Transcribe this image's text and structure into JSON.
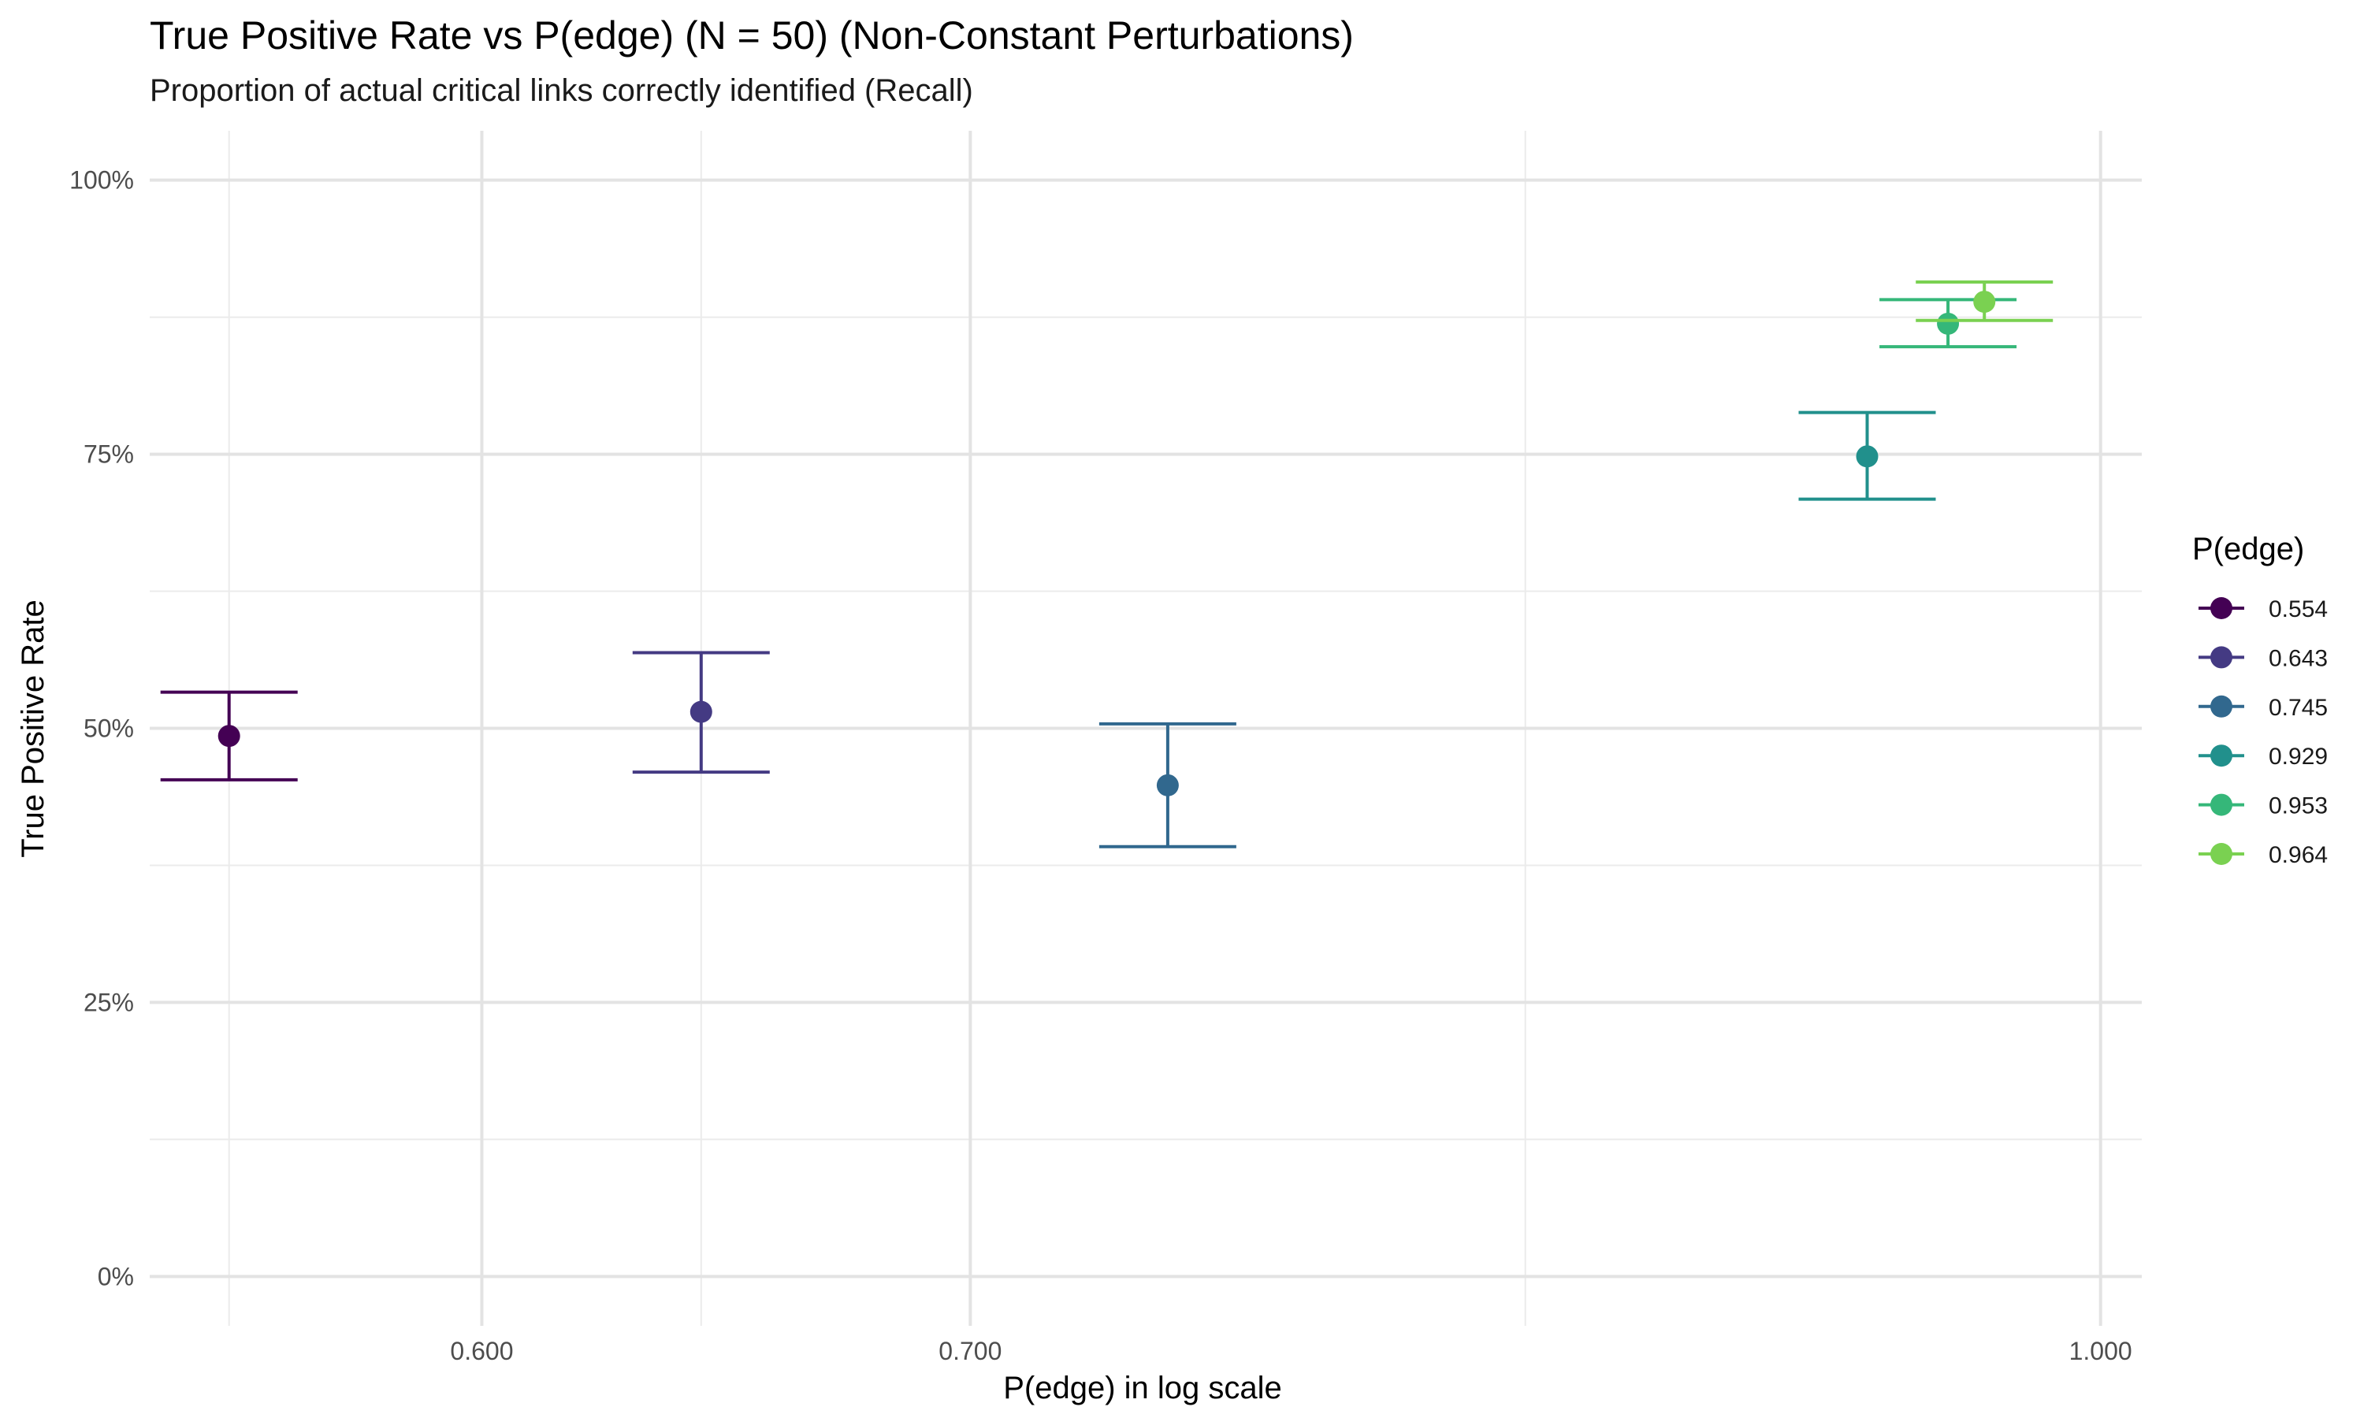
{
  "chart_data": {
    "type": "scatter",
    "title": "True Positive Rate vs P(edge) (N = 50) (Non-Constant Perturbations)",
    "subtitle": "Proportion of actual critical links correctly identified (Recall)",
    "xlabel": "P(edge) in log scale",
    "ylabel": "True Positive Rate",
    "x_scale": "log",
    "xlim": [
      0.5403,
      1.0131
    ],
    "ylim": [
      -0.045,
      1.045
    ],
    "x_ticks": [
      0.6,
      0.7,
      1.0
    ],
    "x_tick_labels": [
      "0.600",
      "0.700",
      "1.000"
    ],
    "x_minor_ticks": [
      0.554,
      0.643,
      0.834
    ],
    "y_ticks": [
      0,
      0.25,
      0.5,
      0.75,
      1.0
    ],
    "y_tick_labels": [
      "0%",
      "25%",
      "50%",
      "75%",
      "100%"
    ],
    "y_minor_ticks": [
      0.125,
      0.375,
      0.625,
      0.875
    ],
    "grid": true,
    "legend_title": "P(edge)",
    "legend_position": "right",
    "points": [
      {
        "label": "0.554",
        "x": 0.554,
        "y": 0.493,
        "ymin": 0.453,
        "ymax": 0.533,
        "color": "#440154"
      },
      {
        "label": "0.643",
        "x": 0.643,
        "y": 0.515,
        "ymin": 0.46,
        "ymax": 0.569,
        "color": "#443A83"
      },
      {
        "label": "0.745",
        "x": 0.745,
        "y": 0.448,
        "ymin": 0.392,
        "ymax": 0.504,
        "color": "#31688E"
      },
      {
        "label": "0.929",
        "x": 0.929,
        "y": 0.748,
        "ymin": 0.709,
        "ymax": 0.788,
        "color": "#21908C"
      },
      {
        "label": "0.953",
        "x": 0.953,
        "y": 0.869,
        "ymin": 0.848,
        "ymax": 0.891,
        "color": "#35B779"
      },
      {
        "label": "0.964",
        "x": 0.964,
        "y": 0.889,
        "ymin": 0.872,
        "ymax": 0.907,
        "color": "#7AD151"
      }
    ]
  }
}
